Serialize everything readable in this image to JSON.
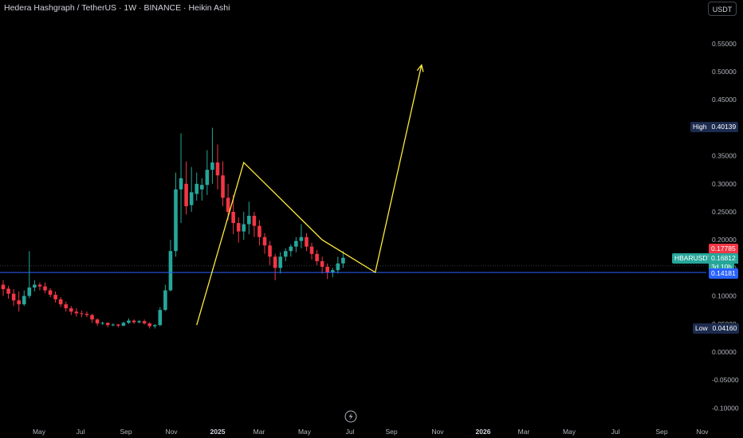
{
  "header": {
    "title": "Hedera Hashgraph / TetherUS · 1W · BINANCE · Heikin Ashi",
    "currency_button": "USDT"
  },
  "price_axis": {
    "ticks": [
      "0.55000",
      "0.50000",
      "0.45000",
      "0.40000",
      "0.35000",
      "0.30000",
      "0.25000",
      "0.20000",
      "0.15000",
      "0.10000",
      "0.05000",
      "0.00000",
      "-0.05000",
      "-0.10000"
    ],
    "tick_values": [
      0.55,
      0.5,
      0.45,
      0.4,
      0.35,
      0.3,
      0.25,
      0.2,
      0.15,
      0.1,
      0.05,
      0.0,
      -0.05,
      -0.1
    ]
  },
  "time_axis": {
    "labels": [
      "May",
      "Jul",
      "Sep",
      "Nov",
      "2025",
      "Mar",
      "May",
      "Jul",
      "Sep",
      "Nov",
      "2026",
      "Mar",
      "May",
      "Jul",
      "Sep",
      "Nov"
    ],
    "bold": [
      false,
      false,
      false,
      false,
      true,
      false,
      false,
      false,
      false,
      false,
      true,
      false,
      false,
      false,
      false,
      false
    ]
  },
  "markers": {
    "high_label": "High",
    "high_value": "0.40139",
    "high_price": 0.40139,
    "low_label": "Low",
    "low_value": "0.04160",
    "low_price": 0.0416,
    "prev_value": "0.17785",
    "prev_price": 0.17785,
    "symbol": "HBARUSDT",
    "last_value": "0.16812",
    "last_price": 0.16812,
    "countdown": "3d 10h",
    "line_value": "0.14181",
    "line_price": 0.14181
  },
  "colors": {
    "up": "#26a69a",
    "down": "#f23645",
    "drawing": "#ffeb3b",
    "hline": "#2962ff",
    "high_low_bg": "#1c2b4e",
    "last_bg": "#26a69a",
    "prev_bg": "#f23645"
  },
  "logo_icon": "lightning-bolt-icon",
  "chart_data": {
    "type": "candlestick",
    "style": "Heikin Ashi",
    "interval": "1W",
    "symbol": "HBARUSDT",
    "ylim": [
      -0.115,
      0.615
    ],
    "candles": [
      {
        "o": 0.12,
        "h": 0.128,
        "l": 0.1,
        "c": 0.112
      },
      {
        "o": 0.113,
        "h": 0.118,
        "l": 0.095,
        "c": 0.104
      },
      {
        "o": 0.104,
        "h": 0.112,
        "l": 0.082,
        "c": 0.092
      },
      {
        "o": 0.092,
        "h": 0.108,
        "l": 0.072,
        "c": 0.085
      },
      {
        "o": 0.085,
        "h": 0.11,
        "l": 0.082,
        "c": 0.1
      },
      {
        "o": 0.1,
        "h": 0.18,
        "l": 0.096,
        "c": 0.115
      },
      {
        "o": 0.115,
        "h": 0.128,
        "l": 0.108,
        "c": 0.12
      },
      {
        "o": 0.12,
        "h": 0.124,
        "l": 0.11,
        "c": 0.117
      },
      {
        "o": 0.117,
        "h": 0.124,
        "l": 0.105,
        "c": 0.11
      },
      {
        "o": 0.11,
        "h": 0.114,
        "l": 0.098,
        "c": 0.102
      },
      {
        "o": 0.102,
        "h": 0.108,
        "l": 0.088,
        "c": 0.094
      },
      {
        "o": 0.094,
        "h": 0.098,
        "l": 0.08,
        "c": 0.085
      },
      {
        "o": 0.085,
        "h": 0.09,
        "l": 0.072,
        "c": 0.078
      },
      {
        "o": 0.078,
        "h": 0.082,
        "l": 0.066,
        "c": 0.072
      },
      {
        "o": 0.072,
        "h": 0.078,
        "l": 0.063,
        "c": 0.069
      },
      {
        "o": 0.069,
        "h": 0.074,
        "l": 0.062,
        "c": 0.068
      },
      {
        "o": 0.068,
        "h": 0.072,
        "l": 0.062,
        "c": 0.066
      },
      {
        "o": 0.066,
        "h": 0.068,
        "l": 0.052,
        "c": 0.058
      },
      {
        "o": 0.058,
        "h": 0.06,
        "l": 0.047,
        "c": 0.051
      },
      {
        "o": 0.051,
        "h": 0.054,
        "l": 0.048,
        "c": 0.052
      },
      {
        "o": 0.052,
        "h": 0.053,
        "l": 0.044,
        "c": 0.048
      },
      {
        "o": 0.048,
        "h": 0.051,
        "l": 0.046,
        "c": 0.049
      },
      {
        "o": 0.049,
        "h": 0.05,
        "l": 0.044,
        "c": 0.047
      },
      {
        "o": 0.047,
        "h": 0.054,
        "l": 0.046,
        "c": 0.052
      },
      {
        "o": 0.052,
        "h": 0.06,
        "l": 0.05,
        "c": 0.056
      },
      {
        "o": 0.056,
        "h": 0.058,
        "l": 0.05,
        "c": 0.053
      },
      {
        "o": 0.053,
        "h": 0.057,
        "l": 0.051,
        "c": 0.055
      },
      {
        "o": 0.055,
        "h": 0.058,
        "l": 0.049,
        "c": 0.051
      },
      {
        "o": 0.051,
        "h": 0.053,
        "l": 0.042,
        "c": 0.046
      },
      {
        "o": 0.046,
        "h": 0.05,
        "l": 0.042,
        "c": 0.048
      },
      {
        "o": 0.048,
        "h": 0.08,
        "l": 0.046,
        "c": 0.075
      },
      {
        "o": 0.075,
        "h": 0.12,
        "l": 0.073,
        "c": 0.11
      },
      {
        "o": 0.11,
        "h": 0.2,
        "l": 0.108,
        "c": 0.18
      },
      {
        "o": 0.18,
        "h": 0.32,
        "l": 0.17,
        "c": 0.29
      },
      {
        "o": 0.29,
        "h": 0.39,
        "l": 0.23,
        "c": 0.31
      },
      {
        "o": 0.3,
        "h": 0.34,
        "l": 0.245,
        "c": 0.26
      },
      {
        "o": 0.262,
        "h": 0.33,
        "l": 0.25,
        "c": 0.285
      },
      {
        "o": 0.282,
        "h": 0.32,
        "l": 0.27,
        "c": 0.3
      },
      {
        "o": 0.29,
        "h": 0.31,
        "l": 0.27,
        "c": 0.298
      },
      {
        "o": 0.298,
        "h": 0.36,
        "l": 0.28,
        "c": 0.325
      },
      {
        "o": 0.325,
        "h": 0.4,
        "l": 0.3,
        "c": 0.338
      },
      {
        "o": 0.338,
        "h": 0.37,
        "l": 0.29,
        "c": 0.315
      },
      {
        "o": 0.315,
        "h": 0.34,
        "l": 0.26,
        "c": 0.275
      },
      {
        "o": 0.275,
        "h": 0.3,
        "l": 0.235,
        "c": 0.25
      },
      {
        "o": 0.25,
        "h": 0.28,
        "l": 0.21,
        "c": 0.23
      },
      {
        "o": 0.23,
        "h": 0.24,
        "l": 0.195,
        "c": 0.215
      },
      {
        "o": 0.215,
        "h": 0.25,
        "l": 0.2,
        "c": 0.228
      },
      {
        "o": 0.228,
        "h": 0.268,
        "l": 0.21,
        "c": 0.243
      },
      {
        "o": 0.243,
        "h": 0.25,
        "l": 0.205,
        "c": 0.225
      },
      {
        "o": 0.225,
        "h": 0.235,
        "l": 0.19,
        "c": 0.205
      },
      {
        "o": 0.205,
        "h": 0.212,
        "l": 0.175,
        "c": 0.19
      },
      {
        "o": 0.19,
        "h": 0.198,
        "l": 0.155,
        "c": 0.17
      },
      {
        "o": 0.17,
        "h": 0.175,
        "l": 0.128,
        "c": 0.15
      },
      {
        "o": 0.15,
        "h": 0.178,
        "l": 0.14,
        "c": 0.17
      },
      {
        "o": 0.17,
        "h": 0.185,
        "l": 0.162,
        "c": 0.18
      },
      {
        "o": 0.18,
        "h": 0.192,
        "l": 0.17,
        "c": 0.188
      },
      {
        "o": 0.188,
        "h": 0.205,
        "l": 0.178,
        "c": 0.198
      },
      {
        "o": 0.198,
        "h": 0.228,
        "l": 0.185,
        "c": 0.205
      },
      {
        "o": 0.205,
        "h": 0.212,
        "l": 0.18,
        "c": 0.188
      },
      {
        "o": 0.188,
        "h": 0.195,
        "l": 0.165,
        "c": 0.175
      },
      {
        "o": 0.175,
        "h": 0.182,
        "l": 0.155,
        "c": 0.162
      },
      {
        "o": 0.162,
        "h": 0.17,
        "l": 0.14,
        "c": 0.152
      },
      {
        "o": 0.152,
        "h": 0.158,
        "l": 0.13,
        "c": 0.142
      },
      {
        "o": 0.142,
        "h": 0.15,
        "l": 0.133,
        "c": 0.146
      },
      {
        "o": 0.146,
        "h": 0.17,
        "l": 0.14,
        "c": 0.158
      },
      {
        "o": 0.158,
        "h": 0.18,
        "l": 0.15,
        "c": 0.168
      }
    ],
    "drawings": [
      {
        "type": "polyline",
        "points": [
          [
            "2024-11-04",
            0.048
          ],
          [
            "2025-01-06",
            0.338
          ],
          [
            "2025-04-21",
            0.2
          ],
          [
            "2025-07-01",
            0.142
          ],
          [
            "2025-09-01",
            0.512
          ]
        ],
        "arrow_end": true
      }
    ],
    "horizontal_lines": [
      0.14181
    ]
  }
}
